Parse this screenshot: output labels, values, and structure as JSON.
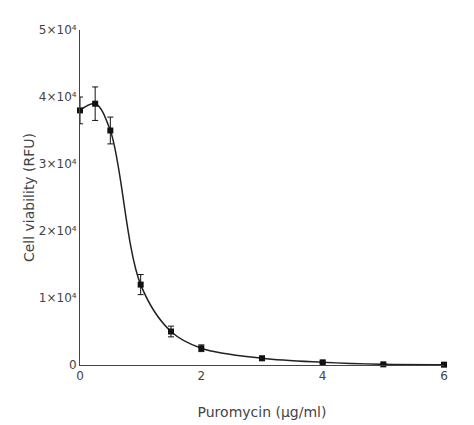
{
  "chart_data": {
    "type": "line",
    "x": [
      0,
      0.25,
      0.5,
      1.0,
      1.5,
      2.0,
      3.0,
      4.0,
      5.0,
      6.0
    ],
    "series": [
      {
        "type": "line",
        "color": "#222222",
        "line_style": "solid",
        "values": [
          38000,
          39000,
          35000,
          12000,
          5000,
          2500,
          1000,
          400,
          100,
          50
        ]
      },
      {
        "type": "scatter",
        "color": "#111111",
        "marker": "square",
        "values": [
          38000,
          39000,
          35000,
          12000,
          5000,
          2500,
          1000,
          400,
          100,
          50
        ],
        "error": [
          2000,
          2500,
          2000,
          1500,
          800,
          500,
          300,
          200,
          100,
          50
        ]
      }
    ],
    "xlabel": "Puromycin (μg/ml)",
    "ylabel": "Cell viability (RFU)",
    "xlim": [
      0,
      6
    ],
    "ylim": [
      0,
      50000
    ],
    "xticks": [
      0,
      2,
      4,
      6
    ],
    "yticks": [
      0,
      {
        "value": 10000,
        "label": "1×10⁴"
      },
      {
        "value": 20000,
        "label": "2×10⁴"
      },
      {
        "value": 30000,
        "label": "3×10⁴"
      },
      {
        "value": 40000,
        "label": "4×10⁴"
      },
      {
        "value": 50000,
        "label": "5×10⁴"
      }
    ],
    "grid": false
  }
}
